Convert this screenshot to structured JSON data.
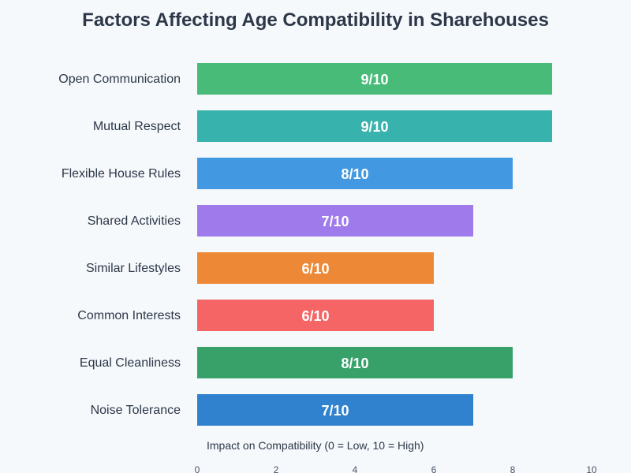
{
  "chart_data": {
    "type": "bar",
    "orientation": "horizontal",
    "title": "Factors Affecting Age Compatibility in Sharehouses",
    "xlabel": "Impact on Compatibility (0 = Low, 10 = High)",
    "xlim": [
      0,
      10
    ],
    "xticks": [
      0,
      2,
      4,
      6,
      8,
      10
    ],
    "grid": false,
    "categories": [
      "Open Communication",
      "Mutual Respect",
      "Flexible House Rules",
      "Shared Activities",
      "Similar Lifestyles",
      "Common Interests",
      "Equal Cleanliness",
      "Noise Tolerance"
    ],
    "values": [
      9,
      9,
      8,
      7,
      6,
      6,
      8,
      7
    ],
    "data_labels": [
      "9/10",
      "9/10",
      "8/10",
      "7/10",
      "6/10",
      "6/10",
      "8/10",
      "7/10"
    ],
    "colors": [
      "#48bb78",
      "#38b2ac",
      "#4299e1",
      "#9f7aea",
      "#ed8936",
      "#f56565",
      "#38a169",
      "#3182ce"
    ]
  }
}
